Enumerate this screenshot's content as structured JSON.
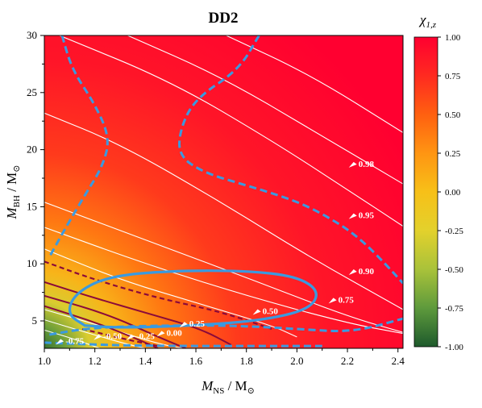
{
  "chart_data": {
    "type": "heatmap",
    "title": "DD2",
    "xlabel": {
      "main": "M",
      "sub": "NS",
      "suffix": " / M",
      "suffix_sub": "⊙"
    },
    "ylabel": {
      "main": "M",
      "sub": "BH",
      "suffix": " / M",
      "suffix_sub": "⊙"
    },
    "xlim": [
      1.0,
      2.42
    ],
    "ylim": [
      2.6,
      30
    ],
    "xticks": [
      "1.0",
      "1.2",
      "1.4",
      "1.6",
      "1.8",
      "2.0",
      "2.2",
      "2.4"
    ],
    "yticks": [
      "5",
      "10",
      "15",
      "20",
      "25",
      "30"
    ],
    "colorbar": {
      "label": {
        "main": "χ",
        "sub": "1,z"
      },
      "range": [
        -1.0,
        1.0
      ],
      "ticks": [
        "1.00",
        "0.75",
        "0.50",
        "0.25",
        "0.00",
        "-0.25",
        "-0.50",
        "-0.75",
        "-1.00"
      ],
      "colormap": [
        "#ff0030",
        "#ff2a20",
        "#ff6010",
        "#ff9512",
        "#f7c018",
        "#e3d12c",
        "#a9c23a",
        "#5e9a3c",
        "#1e5a2c"
      ]
    },
    "contour_levels": [
      {
        "label": "0.98",
        "x": 2.25,
        "y": 18.5
      },
      {
        "label": "0.95",
        "x": 2.25,
        "y": 14.0
      },
      {
        "label": "0.90",
        "x": 2.25,
        "y": 9.1
      },
      {
        "label": "0.75",
        "x": 2.17,
        "y": 6.6
      },
      {
        "label": "0.50",
        "x": 1.87,
        "y": 5.6
      },
      {
        "label": "0.25",
        "x": 1.58,
        "y": 4.5
      },
      {
        "label": "0.00",
        "x": 1.49,
        "y": 3.7
      },
      {
        "label": "-0.25",
        "x": 1.37,
        "y": 3.4
      },
      {
        "label": "-0.50",
        "x": 1.24,
        "y": 3.4
      },
      {
        "label": "-0.75",
        "x": 1.09,
        "y": 3.0
      }
    ],
    "regions": {
      "blue_dashed_boundary": [
        [
          [
            1.07,
            30
          ],
          [
            1.11,
            27
          ],
          [
            1.2,
            24
          ],
          [
            1.26,
            21
          ],
          [
            1.23,
            18.5
          ],
          [
            1.16,
            16
          ],
          [
            1.08,
            13
          ],
          [
            1.02,
            10.6
          ]
        ],
        [
          [
            1.85,
            30
          ],
          [
            1.77,
            27
          ],
          [
            1.6,
            24.5
          ],
          [
            1.54,
            22
          ],
          [
            1.53,
            19.5
          ],
          [
            1.63,
            18
          ],
          [
            1.78,
            17
          ],
          [
            1.9,
            16.2
          ],
          [
            2.03,
            15.2
          ],
          [
            2.17,
            13.5
          ],
          [
            2.26,
            12
          ],
          [
            2.35,
            10
          ],
          [
            2.42,
            8.3
          ]
        ],
        [
          [
            1.02,
            3.8
          ],
          [
            1.18,
            4.4
          ],
          [
            1.45,
            4.6
          ],
          [
            1.75,
            4.6
          ],
          [
            2.0,
            4.3
          ],
          [
            2.22,
            4.0
          ],
          [
            2.42,
            5.2
          ]
        ],
        [
          [
            1.0,
            3.1
          ],
          [
            1.3,
            2.85
          ],
          [
            1.6,
            2.8
          ],
          [
            2.1,
            2.8
          ]
        ]
      ],
      "blue_solid_boundary": [
        [
          1.16,
          4.6
        ],
        [
          1.09,
          5.6
        ],
        [
          1.12,
          7.4
        ],
        [
          1.25,
          8.9
        ],
        [
          1.5,
          9.4
        ],
        [
          1.8,
          9.4
        ],
        [
          2.0,
          8.9
        ],
        [
          2.09,
          7.6
        ],
        [
          2.05,
          6.0
        ],
        [
          1.85,
          5.0
        ],
        [
          1.55,
          4.55
        ],
        [
          1.3,
          4.4
        ],
        [
          1.16,
          4.6
        ]
      ],
      "maroon_dashed_boundary": [
        [
          [
            1.0,
            10.2
          ],
          [
            1.2,
            8.6
          ],
          [
            1.45,
            7.0
          ],
          [
            1.7,
            5.8
          ],
          [
            1.9,
            4.3
          ]
        ],
        [
          [
            1.15,
            4.3
          ],
          [
            1.3,
            3.5
          ],
          [
            1.45,
            2.8
          ]
        ]
      ],
      "maroon_solid_boundary": [
        [
          [
            1.0,
            8.4
          ],
          [
            1.2,
            7.0
          ],
          [
            1.42,
            5.6
          ],
          [
            1.62,
            4.3
          ],
          [
            1.74,
            2.9
          ]
        ],
        [
          [
            1.0,
            7.2
          ],
          [
            1.25,
            5.6
          ],
          [
            1.45,
            3.6
          ],
          [
            1.56,
            2.6
          ]
        ],
        [
          [
            1.0,
            6.3
          ],
          [
            1.2,
            4.9
          ],
          [
            1.38,
            3.3
          ],
          [
            1.45,
            2.6
          ]
        ]
      ]
    }
  }
}
